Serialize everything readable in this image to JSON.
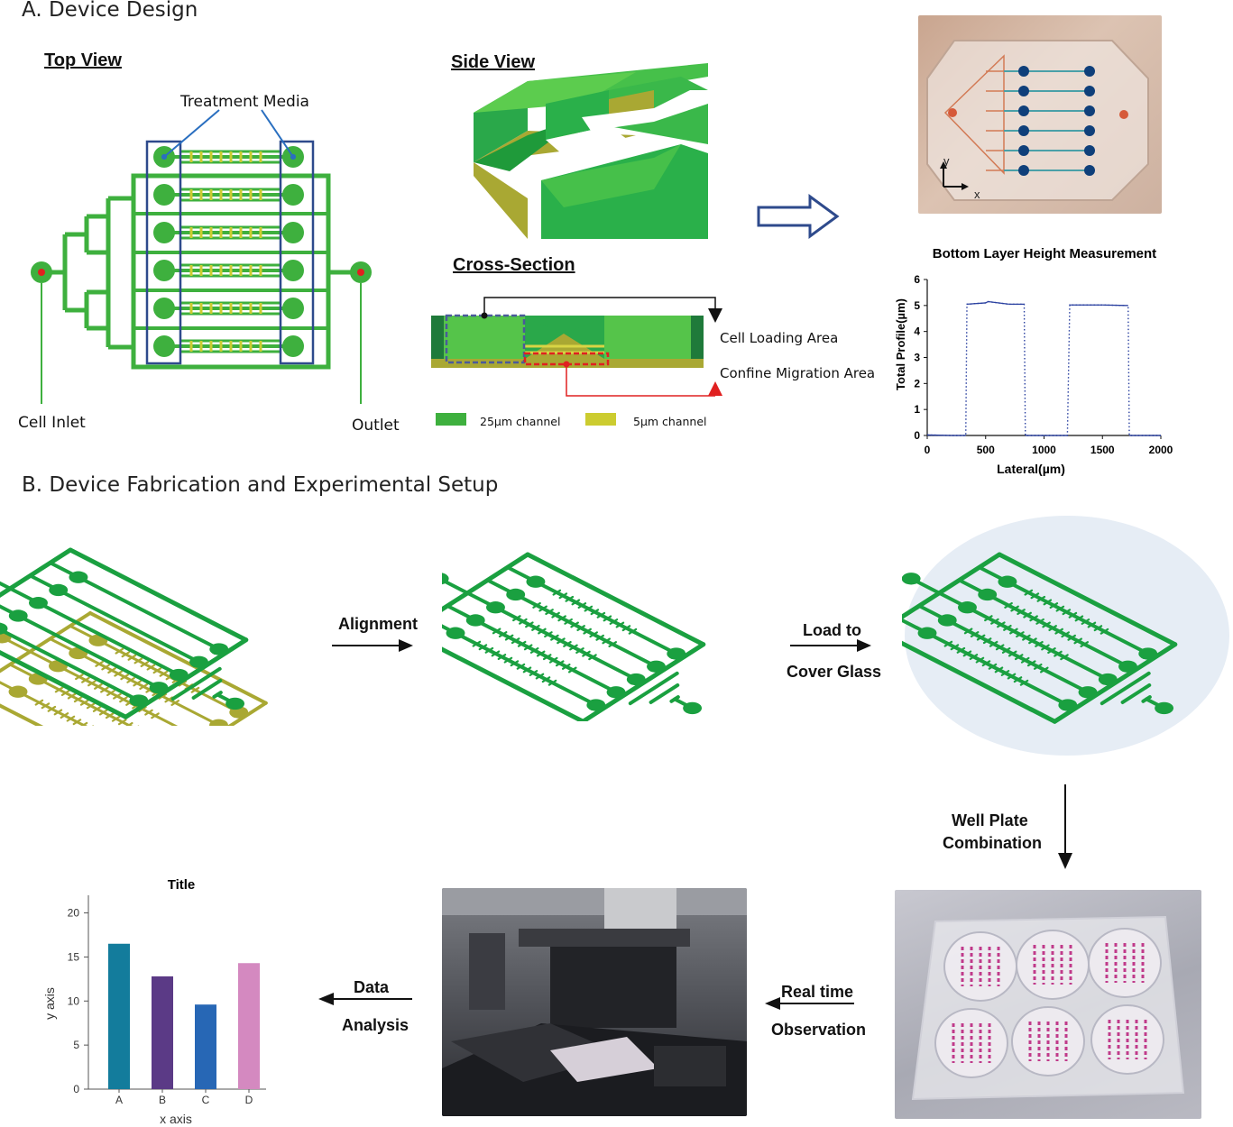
{
  "section_a": {
    "title": "A. Device Design",
    "top_view": {
      "title": "Top View",
      "treatment_media": "Treatment Media",
      "cell_inlet": "Cell Inlet",
      "outlet": "Outlet"
    },
    "side_view": {
      "title": "Side View"
    },
    "cross_section": {
      "title": "Cross-Section",
      "cell_loading_area": "Cell Loading Area",
      "confine_migration_area": "Confine Migration Area",
      "legend_25": "25µm channel",
      "legend_5": "5µm channel"
    },
    "photo": {
      "axis_y": "y",
      "axis_x": "x"
    },
    "height_chart": {
      "title": "Bottom Layer Height Measurement",
      "xlabel": "Lateral(µm)",
      "ylabel": "Total Profile(µm)"
    }
  },
  "section_b": {
    "title": "B. Device Fabrication and Experimental Setup",
    "alignment": "Alignment",
    "load_to": "Load to",
    "cover_glass": "Cover Glass",
    "well_plate": "Well Plate",
    "combination": "Combination",
    "real_time": "Real time",
    "observation": "Observation",
    "data": "Data",
    "analysis": "Analysis"
  },
  "colors": {
    "green": "#3eb03e",
    "dark_green": "#1f8a3a",
    "olive": "#a9a833",
    "blue_box": "#2e4a8c",
    "red": "#e02020",
    "bar_a": "#137c9c",
    "bar_b": "#5b3a86",
    "bar_c": "#2767b5",
    "bar_d": "#d489c0"
  },
  "chart_data": [
    {
      "type": "line",
      "title": "Bottom Layer Height Measurement",
      "xlabel": "Lateral(µm)",
      "ylabel": "Total Profile(µm)",
      "xlim": [
        0,
        2000
      ],
      "ylim": [
        0,
        6
      ],
      "xticks": [
        0,
        500,
        1000,
        1500,
        2000
      ],
      "yticks": [
        0,
        1,
        2,
        3,
        4,
        5,
        6
      ],
      "series": [
        {
          "x": [
            0,
            100,
            200,
            330,
            340,
            500,
            520,
            700,
            830,
            840,
            1000,
            1200,
            1220,
            1230,
            1500,
            1700,
            1720,
            1730,
            1900,
            2000
          ],
          "y": [
            0.02,
            0.01,
            0.0,
            0.0,
            5.05,
            5.1,
            5.15,
            5.05,
            5.05,
            0.0,
            0.0,
            0.0,
            5.02,
            5.02,
            5.02,
            5.0,
            5.0,
            0.0,
            0.0,
            0.0
          ]
        }
      ],
      "grid": false
    },
    {
      "type": "bar",
      "title": "Title",
      "xlabel": "x axis",
      "ylabel": "y axis",
      "categories": [
        "A",
        "B",
        "C",
        "D"
      ],
      "values": [
        16.5,
        12.8,
        9.6,
        14.3
      ],
      "ylim": [
        0,
        22
      ],
      "yticks": [
        0,
        5,
        10,
        15,
        20
      ],
      "grid": false
    }
  ]
}
